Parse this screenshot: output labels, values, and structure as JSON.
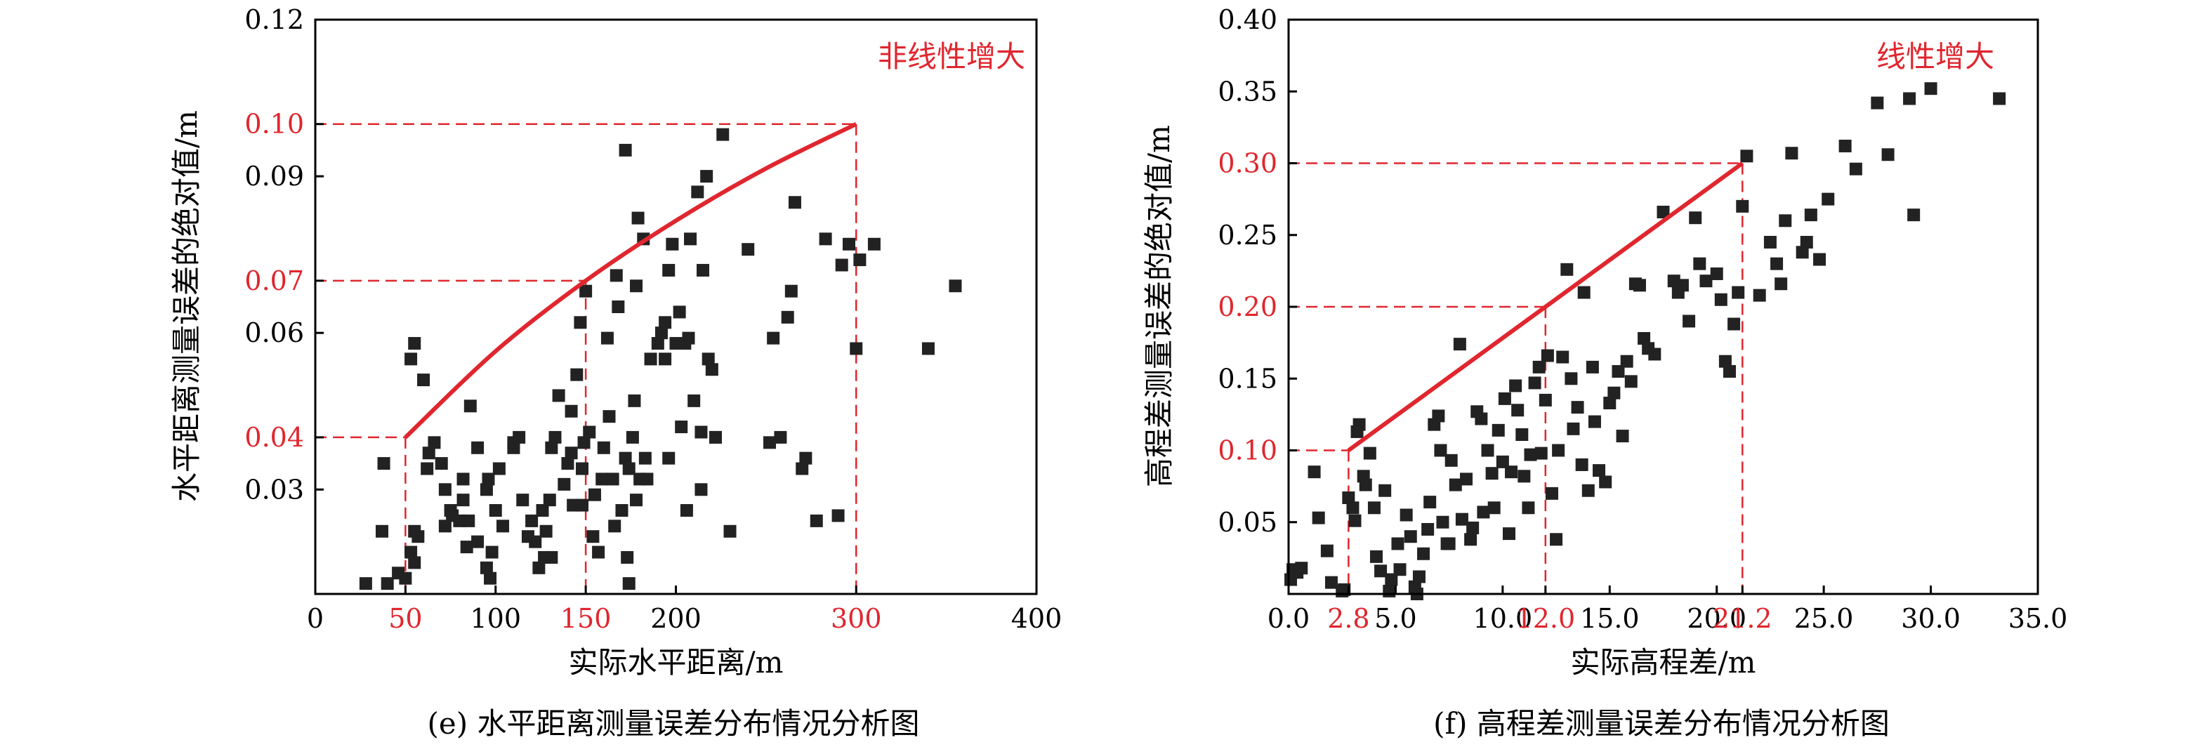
{
  "chart_data": [
    {
      "type": "scatter",
      "title": "",
      "caption": "(e) 水平距离测量误差分布情况分析图",
      "xlabel": "实际水平距离/m",
      "ylabel": "水平距离测量误差的绝对值/m",
      "xlim": [
        0,
        400
      ],
      "ylim": [
        0.01,
        0.12
      ],
      "x_ticks": [
        0,
        50,
        100,
        150,
        200,
        300,
        400
      ],
      "x_tick_labels": [
        "0",
        "50",
        "100",
        "150",
        "200",
        "300",
        "400"
      ],
      "y_ticks": [
        0.03,
        0.04,
        0.06,
        0.07,
        0.09,
        0.1,
        0.12
      ],
      "y_tick_labels": [
        "0.03",
        "0.04",
        "0.06",
        "0.07",
        "0.09",
        "0.10",
        "0.12"
      ],
      "highlight_x_ticks": [
        50,
        150,
        300
      ],
      "highlight_y_ticks": [
        0.04,
        0.07,
        0.1
      ],
      "colors": {
        "points": "#222222",
        "trend": "#e0262e",
        "highlight": "#e0262e",
        "axis": "#000000"
      },
      "annotation": "非线性增大",
      "trend_curve": [
        [
          50,
          0.04
        ],
        [
          100,
          0.0565
        ],
        [
          150,
          0.07
        ],
        [
          200,
          0.0815
        ],
        [
          250,
          0.0915
        ],
        [
          300,
          0.1
        ]
      ],
      "guide_points": [
        [
          50,
          0.04
        ],
        [
          150,
          0.07
        ],
        [
          300,
          0.1
        ]
      ],
      "points": [
        [
          28,
          0.012
        ],
        [
          40,
          0.012
        ],
        [
          38,
          0.035
        ],
        [
          37,
          0.022
        ],
        [
          46,
          0.014
        ],
        [
          50,
          0.013
        ],
        [
          55,
          0.016
        ],
        [
          57,
          0.021
        ],
        [
          53,
          0.018
        ],
        [
          55,
          0.022
        ],
        [
          53,
          0.055
        ],
        [
          55,
          0.058
        ],
        [
          60,
          0.051
        ],
        [
          63,
          0.037
        ],
        [
          66,
          0.039
        ],
        [
          62,
          0.034
        ],
        [
          70,
          0.035
        ],
        [
          72,
          0.03
        ],
        [
          75,
          0.026
        ],
        [
          72,
          0.023
        ],
        [
          76,
          0.025
        ],
        [
          80,
          0.024
        ],
        [
          82,
          0.032
        ],
        [
          82,
          0.028
        ],
        [
          84,
          0.019
        ],
        [
          85,
          0.024
        ],
        [
          86,
          0.046
        ],
        [
          90,
          0.02
        ],
        [
          90,
          0.038
        ],
        [
          96,
          0.032
        ],
        [
          95,
          0.03
        ],
        [
          95,
          0.015
        ],
        [
          97,
          0.013
        ],
        [
          98,
          0.018
        ],
        [
          100,
          0.026
        ],
        [
          102,
          0.034
        ],
        [
          104,
          0.023
        ],
        [
          110,
          0.038
        ],
        [
          110,
          0.039
        ],
        [
          113,
          0.04
        ],
        [
          115,
          0.028
        ],
        [
          118,
          0.021
        ],
        [
          120,
          0.024
        ],
        [
          122,
          0.02
        ],
        [
          124,
          0.015
        ],
        [
          126,
          0.026
        ],
        [
          128,
          0.022
        ],
        [
          127,
          0.017
        ],
        [
          130,
          0.028
        ],
        [
          131,
          0.017
        ],
        [
          131,
          0.038
        ],
        [
          133,
          0.04
        ],
        [
          135,
          0.048
        ],
        [
          138,
          0.031
        ],
        [
          140,
          0.035
        ],
        [
          142,
          0.037
        ],
        [
          142,
          0.045
        ],
        [
          143,
          0.027
        ],
        [
          145,
          0.052
        ],
        [
          147,
          0.062
        ],
        [
          148,
          0.034
        ],
        [
          148,
          0.027
        ],
        [
          149,
          0.039
        ],
        [
          150,
          0.068
        ],
        [
          152,
          0.041
        ],
        [
          154,
          0.021
        ],
        [
          155,
          0.029
        ],
        [
          157,
          0.018
        ],
        [
          159,
          0.032
        ],
        [
          160,
          0.038
        ],
        [
          162,
          0.059
        ],
        [
          163,
          0.044
        ],
        [
          165,
          0.032
        ],
        [
          166,
          0.023
        ],
        [
          167,
          0.071
        ],
        [
          168,
          0.065
        ],
        [
          170,
          0.026
        ],
        [
          172,
          0.036
        ],
        [
          173,
          0.017
        ],
        [
          174,
          0.012
        ],
        [
          172,
          0.095
        ],
        [
          174,
          0.034
        ],
        [
          176,
          0.04
        ],
        [
          177,
          0.047
        ],
        [
          178,
          0.028
        ],
        [
          178,
          0.069
        ],
        [
          179,
          0.082
        ],
        [
          180,
          0.032
        ],
        [
          182,
          0.078
        ],
        [
          183,
          0.036
        ],
        [
          184,
          0.032
        ],
        [
          186,
          0.055
        ],
        [
          190,
          0.058
        ],
        [
          192,
          0.06
        ],
        [
          194,
          0.062
        ],
        [
          194,
          0.055
        ],
        [
          196,
          0.036
        ],
        [
          196,
          0.072
        ],
        [
          198,
          0.077
        ],
        [
          200,
          0.058
        ],
        [
          202,
          0.064
        ],
        [
          203,
          0.042
        ],
        [
          205,
          0.058
        ],
        [
          206,
          0.026
        ],
        [
          207,
          0.059
        ],
        [
          208,
          0.078
        ],
        [
          210,
          0.047
        ],
        [
          212,
          0.087
        ],
        [
          214,
          0.041
        ],
        [
          214,
          0.03
        ],
        [
          215,
          0.072
        ],
        [
          217,
          0.09
        ],
        [
          218,
          0.055
        ],
        [
          220,
          0.053
        ],
        [
          222,
          0.04
        ],
        [
          222,
          0.04
        ],
        [
          226,
          0.098
        ],
        [
          230,
          0.022
        ],
        [
          240,
          0.076
        ],
        [
          252,
          0.039
        ],
        [
          254,
          0.059
        ],
        [
          258,
          0.04
        ],
        [
          262,
          0.063
        ],
        [
          264,
          0.068
        ],
        [
          266,
          0.085
        ],
        [
          270,
          0.034
        ],
        [
          272,
          0.036
        ],
        [
          278,
          0.024
        ],
        [
          283,
          0.078
        ],
        [
          290,
          0.025
        ],
        [
          292,
          0.073
        ],
        [
          296,
          0.077
        ],
        [
          300,
          0.057
        ],
        [
          302,
          0.074
        ],
        [
          310,
          0.077
        ],
        [
          340,
          0.057
        ],
        [
          355,
          0.069
        ]
      ]
    },
    {
      "type": "scatter",
      "title": "",
      "caption": "(f) 高程差测量误差分布情况分析图",
      "xlabel": "实际高程差/m",
      "ylabel": "高程差测量误差的绝对值/m",
      "xlim": [
        0,
        35
      ],
      "ylim": [
        0,
        0.4
      ],
      "x_ticks": [
        0,
        2.8,
        5,
        10,
        12,
        15,
        20,
        21.2,
        25,
        30,
        35
      ],
      "x_tick_labels": [
        "0.0",
        "2.8",
        "5.0",
        "10.0",
        "12.0",
        "15.0",
        "20.0",
        "21.2",
        "25.0",
        "30.0",
        "35.0"
      ],
      "y_ticks": [
        0.05,
        0.1,
        0.15,
        0.2,
        0.25,
        0.3,
        0.35,
        0.4
      ],
      "y_tick_labels": [
        "0.05",
        "0.10",
        "0.15",
        "0.20",
        "0.25",
        "0.30",
        "0.35",
        "0.40"
      ],
      "highlight_x_ticks": [
        2.8,
        12.0,
        21.2
      ],
      "highlight_y_ticks": [
        0.1,
        0.2,
        0.3
      ],
      "colors": {
        "points": "#222222",
        "trend": "#e0262e",
        "highlight": "#e0262e",
        "axis": "#000000"
      },
      "annotation": "线性增大",
      "trend_curve": [
        [
          2.8,
          0.1
        ],
        [
          21.2,
          0.3
        ]
      ],
      "guide_points": [
        [
          2.8,
          0.1
        ],
        [
          12.0,
          0.2
        ],
        [
          21.2,
          0.3
        ]
      ],
      "points": [
        [
          0.1,
          0.01
        ],
        [
          0.2,
          0.017
        ],
        [
          0.4,
          0.015
        ],
        [
          0.6,
          0.018
        ],
        [
          1.2,
          0.085
        ],
        [
          1.4,
          0.053
        ],
        [
          1.8,
          0.03
        ],
        [
          2.0,
          0.008
        ],
        [
          2.5,
          0.002
        ],
        [
          2.6,
          0.003
        ],
        [
          2.8,
          0.067
        ],
        [
          3.0,
          0.06
        ],
        [
          3.1,
          0.051
        ],
        [
          3.2,
          0.113
        ],
        [
          3.3,
          0.118
        ],
        [
          3.5,
          0.082
        ],
        [
          3.6,
          0.076
        ],
        [
          3.8,
          0.098
        ],
        [
          4.0,
          0.06
        ],
        [
          4.1,
          0.026
        ],
        [
          4.3,
          0.016
        ],
        [
          4.5,
          0.072
        ],
        [
          4.7,
          0.002
        ],
        [
          4.8,
          0.01
        ],
        [
          5.1,
          0.035
        ],
        [
          5.2,
          0.017
        ],
        [
          5.5,
          0.055
        ],
        [
          5.7,
          0.04
        ],
        [
          5.9,
          0.005
        ],
        [
          6.0,
          0.0
        ],
        [
          6.1,
          0.012
        ],
        [
          6.3,
          0.028
        ],
        [
          6.5,
          0.045
        ],
        [
          6.6,
          0.064
        ],
        [
          6.8,
          0.118
        ],
        [
          7.0,
          0.124
        ],
        [
          7.1,
          0.1
        ],
        [
          7.2,
          0.05
        ],
        [
          7.4,
          0.035
        ],
        [
          7.5,
          0.035
        ],
        [
          7.6,
          0.093
        ],
        [
          7.8,
          0.076
        ],
        [
          8.0,
          0.174
        ],
        [
          8.1,
          0.052
        ],
        [
          8.3,
          0.08
        ],
        [
          8.5,
          0.038
        ],
        [
          8.6,
          0.046
        ],
        [
          8.8,
          0.127
        ],
        [
          9.0,
          0.122
        ],
        [
          9.1,
          0.057
        ],
        [
          9.3,
          0.1
        ],
        [
          9.5,
          0.084
        ],
        [
          9.6,
          0.06
        ],
        [
          9.8,
          0.114
        ],
        [
          10.0,
          0.092
        ],
        [
          10.1,
          0.136
        ],
        [
          10.3,
          0.042
        ],
        [
          10.4,
          0.085
        ],
        [
          10.6,
          0.145
        ],
        [
          10.7,
          0.128
        ],
        [
          10.9,
          0.111
        ],
        [
          11.0,
          0.082
        ],
        [
          11.2,
          0.06
        ],
        [
          11.3,
          0.097
        ],
        [
          11.5,
          0.147
        ],
        [
          11.7,
          0.158
        ],
        [
          11.8,
          0.098
        ],
        [
          12.0,
          0.135
        ],
        [
          12.1,
          0.166
        ],
        [
          12.3,
          0.07
        ],
        [
          12.5,
          0.038
        ],
        [
          12.6,
          0.1
        ],
        [
          12.8,
          0.165
        ],
        [
          13.0,
          0.226
        ],
        [
          13.2,
          0.15
        ],
        [
          13.3,
          0.115
        ],
        [
          13.5,
          0.13
        ],
        [
          13.7,
          0.09
        ],
        [
          13.8,
          0.21
        ],
        [
          14.0,
          0.072
        ],
        [
          14.2,
          0.158
        ],
        [
          14.3,
          0.12
        ],
        [
          14.5,
          0.086
        ],
        [
          14.8,
          0.078
        ],
        [
          15.0,
          0.133
        ],
        [
          15.2,
          0.14
        ],
        [
          15.4,
          0.155
        ],
        [
          15.6,
          0.11
        ],
        [
          15.8,
          0.162
        ],
        [
          16.0,
          0.148
        ],
        [
          16.2,
          0.216
        ],
        [
          16.4,
          0.215
        ],
        [
          16.6,
          0.178
        ],
        [
          16.8,
          0.171
        ],
        [
          17.1,
          0.167
        ],
        [
          17.5,
          0.266
        ],
        [
          18.0,
          0.218
        ],
        [
          18.2,
          0.21
        ],
        [
          18.4,
          0.215
        ],
        [
          18.7,
          0.19
        ],
        [
          19.0,
          0.262
        ],
        [
          19.2,
          0.23
        ],
        [
          19.5,
          0.218
        ],
        [
          20.0,
          0.223
        ],
        [
          20.2,
          0.205
        ],
        [
          20.4,
          0.162
        ],
        [
          20.6,
          0.155
        ],
        [
          20.8,
          0.188
        ],
        [
          21.0,
          0.21
        ],
        [
          21.2,
          0.27
        ],
        [
          21.4,
          0.305
        ],
        [
          22.0,
          0.208
        ],
        [
          22.5,
          0.245
        ],
        [
          22.8,
          0.23
        ],
        [
          23.0,
          0.216
        ],
        [
          23.2,
          0.26
        ],
        [
          23.5,
          0.307
        ],
        [
          24.0,
          0.238
        ],
        [
          24.2,
          0.245
        ],
        [
          24.4,
          0.264
        ],
        [
          24.8,
          0.233
        ],
        [
          25.2,
          0.275
        ],
        [
          26.0,
          0.312
        ],
        [
          26.5,
          0.296
        ],
        [
          27.5,
          0.342
        ],
        [
          28.0,
          0.306
        ],
        [
          29.0,
          0.345
        ],
        [
          29.2,
          0.264
        ],
        [
          30.0,
          0.352
        ],
        [
          33.2,
          0.345
        ]
      ]
    }
  ]
}
